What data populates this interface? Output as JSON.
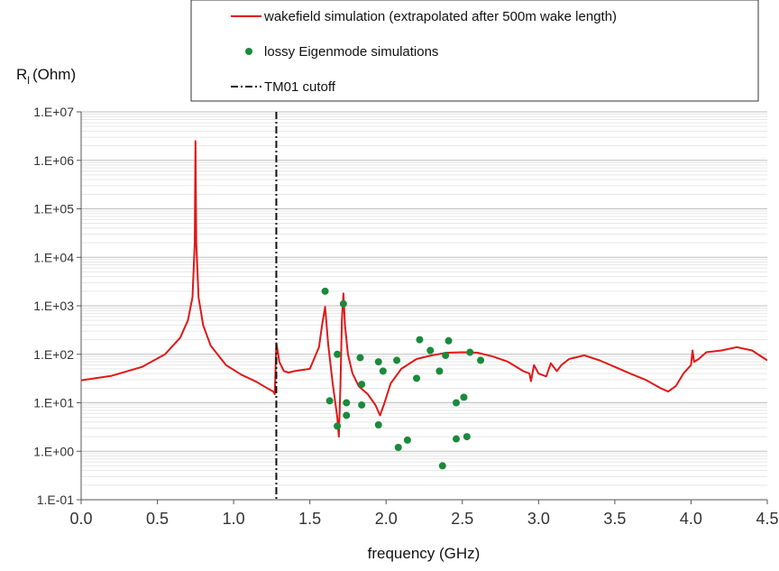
{
  "chart_data": {
    "type": "line",
    "xlabel": "frequency (GHz)",
    "ylabel_main": "R",
    "ylabel_sub": "l",
    "ylabel_unit": "(Ohm)",
    "x_ticks": [
      "0.0",
      "0.5",
      "1.0",
      "1.5",
      "2.0",
      "2.5",
      "3.0",
      "3.5",
      "4.0",
      "4.5"
    ],
    "y_ticks": [
      "1.E-01",
      "1.E+00",
      "1.E+01",
      "1.E+02",
      "1.E+03",
      "1.E+04",
      "1.E+05",
      "1.E+06",
      "1.E+07"
    ],
    "xlim": [
      0,
      4.5
    ],
    "ylim": [
      0.1,
      10000000
    ],
    "yscale": "log",
    "grid": "horizontal major and minor",
    "legend_position": "top-right",
    "colors": {
      "line": "#e01818",
      "markers": "#1a8a3c",
      "cutoff": "#111111"
    },
    "series": [
      {
        "name": "wakefield simulation (extrapolated after 500m wake length)",
        "kind": "line",
        "x": [
          0.0,
          0.2,
          0.4,
          0.55,
          0.65,
          0.7,
          0.73,
          0.745,
          0.75,
          0.755,
          0.77,
          0.8,
          0.85,
          0.95,
          1.05,
          1.15,
          1.22,
          1.26,
          1.27,
          1.28,
          1.29,
          1.3,
          1.33,
          1.36,
          1.4,
          1.5,
          1.56,
          1.58,
          1.6,
          1.62,
          1.65,
          1.68,
          1.69,
          1.7,
          1.71,
          1.72,
          1.73,
          1.75,
          1.78,
          1.82,
          1.88,
          1.93,
          1.96,
          1.99,
          2.03,
          2.1,
          2.2,
          2.3,
          2.4,
          2.5,
          2.6,
          2.7,
          2.8,
          2.9,
          2.94,
          2.95,
          2.97,
          3.0,
          3.05,
          3.08,
          3.12,
          3.15,
          3.2,
          3.3,
          3.4,
          3.5,
          3.6,
          3.7,
          3.8,
          3.85,
          3.9,
          3.95,
          4.0,
          4.01,
          4.02,
          4.05,
          4.1,
          4.2,
          4.3,
          4.4,
          4.5
        ],
        "y": [
          29,
          36,
          55,
          100,
          220,
          500,
          1500,
          20000,
          2500000,
          20000,
          1500,
          400,
          150,
          60,
          38,
          27,
          20,
          17,
          15,
          170,
          110,
          70,
          45,
          42,
          45,
          50,
          140,
          400,
          950,
          160,
          25,
          5,
          2,
          20,
          500,
          1800,
          400,
          100,
          40,
          22,
          15,
          9,
          5.5,
          10,
          25,
          50,
          80,
          95,
          108,
          110,
          108,
          90,
          70,
          45,
          40,
          28,
          60,
          40,
          35,
          65,
          45,
          60,
          80,
          95,
          75,
          55,
          40,
          30,
          20,
          17,
          22,
          40,
          60,
          120,
          70,
          80,
          110,
          120,
          140,
          120,
          75
        ]
      },
      {
        "name": "lossy Eigenmode simulations",
        "kind": "scatter",
        "points": [
          [
            1.6,
            2000
          ],
          [
            1.72,
            1100
          ],
          [
            1.63,
            11
          ],
          [
            1.68,
            100
          ],
          [
            1.68,
            3.3
          ],
          [
            1.74,
            10
          ],
          [
            1.74,
            5.5
          ],
          [
            1.83,
            85
          ],
          [
            1.84,
            24
          ],
          [
            1.84,
            9
          ],
          [
            1.95,
            70
          ],
          [
            1.95,
            3.5
          ],
          [
            1.98,
            45
          ],
          [
            2.07,
            75
          ],
          [
            2.08,
            1.2
          ],
          [
            2.14,
            1.7
          ],
          [
            2.2,
            32
          ],
          [
            2.22,
            200
          ],
          [
            2.29,
            120
          ],
          [
            2.35,
            45
          ],
          [
            2.37,
            0.5
          ],
          [
            2.39,
            95
          ],
          [
            2.41,
            190
          ],
          [
            2.46,
            10
          ],
          [
            2.46,
            1.8
          ],
          [
            2.51,
            13
          ],
          [
            2.53,
            2
          ],
          [
            2.55,
            110
          ],
          [
            2.62,
            75
          ]
        ]
      },
      {
        "name": "TM01 cutoff",
        "kind": "vline",
        "x": 1.28
      }
    ]
  }
}
